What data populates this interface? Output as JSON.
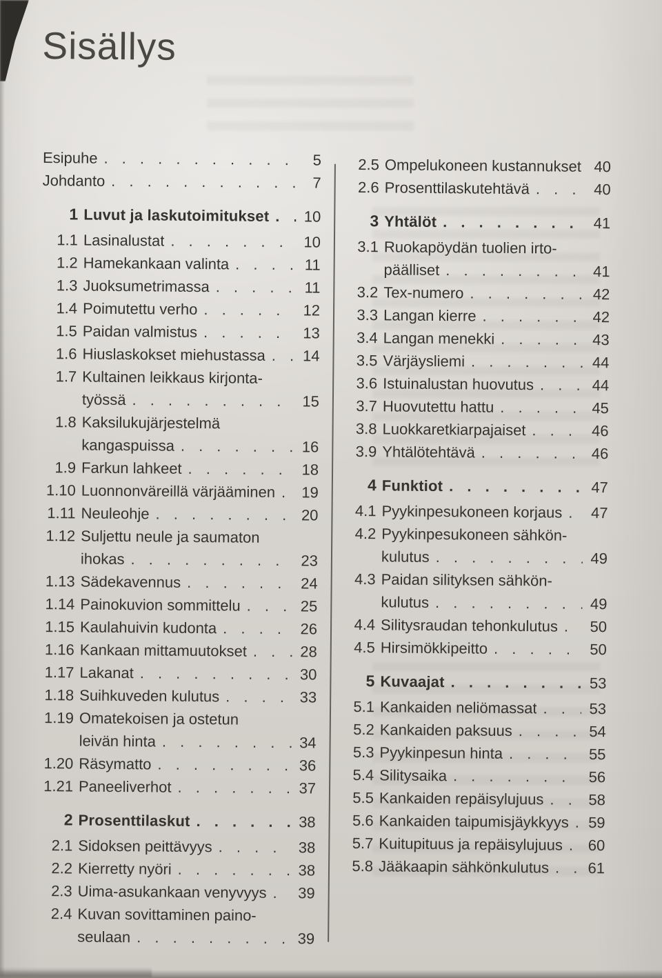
{
  "page_title": "Sisällys",
  "colors": {
    "paper": "#d7d4cf",
    "ink": "#34322e",
    "divider": "#514f4b"
  },
  "toc": {
    "left_column": [
      {
        "num": "",
        "label": "Esipuhe",
        "page": "5"
      },
      {
        "num": "",
        "label": "Johdanto",
        "page": "7"
      },
      {
        "type": "chapter",
        "num": "1",
        "label": "Luvut ja laskutoimitukset",
        "page": "10"
      },
      {
        "num": "1.1",
        "label": "Lasinalustat",
        "page": "10"
      },
      {
        "num": "1.2",
        "label": "Hamekankaan valinta",
        "page": "11"
      },
      {
        "num": "1.3",
        "label": "Juoksumetrimassa",
        "page": "11"
      },
      {
        "num": "1.4",
        "label": "Poimutettu verho",
        "page": "12"
      },
      {
        "num": "1.5",
        "label": "Paidan valmistus",
        "page": "13"
      },
      {
        "num": "1.6",
        "label": "Hiuslaskokset miehustassa",
        "page": "14"
      },
      {
        "num": "1.7",
        "label": "Kultainen leikkaus kirjonta-",
        "label2": "työssä",
        "page": "15"
      },
      {
        "num": "1.8",
        "label": "Kaksilukujärjestelmä",
        "label2": "kangaspuissa",
        "page": "16"
      },
      {
        "num": "1.9",
        "label": "Farkun lahkeet",
        "page": "18"
      },
      {
        "num": "1.10",
        "label": "Luonnonväreillä värjääminen",
        "page": "19"
      },
      {
        "num": "1.11",
        "label": "Neuleohje",
        "page": "20"
      },
      {
        "num": "1.12",
        "label": "Suljettu neule ja saumaton",
        "label2": "ihokas",
        "page": "23"
      },
      {
        "num": "1.13",
        "label": "Sädekavennus",
        "page": "24"
      },
      {
        "num": "1.14",
        "label": "Painokuvion sommittelu",
        "page": "25"
      },
      {
        "num": "1.15",
        "label": "Kaulahuivin kudonta",
        "page": "26"
      },
      {
        "num": "1.16",
        "label": "Kankaan mittamuutokset",
        "page": "28"
      },
      {
        "num": "1.17",
        "label": "Lakanat",
        "page": "30"
      },
      {
        "num": "1.18",
        "label": "Suihkuveden kulutus",
        "page": "33"
      },
      {
        "num": "1.19",
        "label": "Omatekoisen ja ostetun",
        "label2": "leivän hinta",
        "page": "34"
      },
      {
        "num": "1.20",
        "label": "Räsymatto",
        "page": "36"
      },
      {
        "num": "1.21",
        "label": "Paneeliverhot",
        "page": "37"
      },
      {
        "type": "chapter",
        "num": "2",
        "label": "Prosenttilaskut",
        "page": "38"
      },
      {
        "num": "2.1",
        "label": "Sidoksen peittävyys",
        "page": "38"
      },
      {
        "num": "2.2",
        "label": "Kierretty nyöri",
        "page": "38"
      },
      {
        "num": "2.3",
        "label": "Uima-asukankaan venyvyys",
        "page": "39"
      },
      {
        "num": "2.4",
        "label": "Kuvan sovittaminen paino-",
        "label2": "seulaan",
        "page": "39"
      }
    ],
    "right_column": [
      {
        "num": "2.5",
        "label": "Ompelukoneen kustannukset",
        "page": "40"
      },
      {
        "num": "2.6",
        "label": "Prosenttilaskutehtävä",
        "page": "40"
      },
      {
        "type": "chapter",
        "num": "3",
        "label": "Yhtälöt",
        "page": "41"
      },
      {
        "num": "3.1",
        "label": "Ruokapöydän tuolien irto-",
        "label2": "päälliset",
        "page": "41"
      },
      {
        "num": "3.2",
        "label": "Tex-numero",
        "page": "42"
      },
      {
        "num": "3.3",
        "label": "Langan kierre",
        "page": "42"
      },
      {
        "num": "3.4",
        "label": "Langan menekki",
        "page": "43"
      },
      {
        "num": "3.5",
        "label": "Värjäysliemi",
        "page": "44"
      },
      {
        "num": "3.6",
        "label": "Istuinalustan huovutus",
        "page": "44"
      },
      {
        "num": "3.7",
        "label": "Huovutettu hattu",
        "page": "45"
      },
      {
        "num": "3.8",
        "label": "Luokkaretkiarpajaiset",
        "page": "46"
      },
      {
        "num": "3.9",
        "label": "Yhtälötehtävä",
        "page": "46"
      },
      {
        "type": "chapter",
        "num": "4",
        "label": "Funktiot",
        "page": "47"
      },
      {
        "num": "4.1",
        "label": "Pyykinpesukoneen korjaus",
        "page": "47"
      },
      {
        "num": "4.2",
        "label": "Pyykinpesukoneen sähkön-",
        "label2": "kulutus",
        "page": "49"
      },
      {
        "num": "4.3",
        "label": "Paidan silityksen sähkön-",
        "label2": "kulutus",
        "page": "49"
      },
      {
        "num": "4.4",
        "label": "Silitysraudan tehonkulutus",
        "page": "50"
      },
      {
        "num": "4.5",
        "label": "Hirsimökkipeitto",
        "page": "50"
      },
      {
        "type": "chapter",
        "num": "5",
        "label": "Kuvaajat",
        "page": "53"
      },
      {
        "num": "5.1",
        "label": "Kankaiden neliömassat",
        "page": "53"
      },
      {
        "num": "5.2",
        "label": "Kankaiden paksuus",
        "page": "54"
      },
      {
        "num": "5.3",
        "label": "Pyykinpesun hinta",
        "page": "55"
      },
      {
        "num": "5.4",
        "label": "Silitysaika",
        "page": "56"
      },
      {
        "num": "5.5",
        "label": "Kankaiden repäisylujuus",
        "page": "58"
      },
      {
        "num": "5.6",
        "label": "Kankaiden taipumisjäykkyys",
        "page": "59"
      },
      {
        "num": "5.7",
        "label": "Kuitupituus ja repäisylujuus",
        "page": "60"
      },
      {
        "num": "5.8",
        "label": "Jääkaapin sähkönkulutus",
        "page": "61"
      }
    ]
  }
}
